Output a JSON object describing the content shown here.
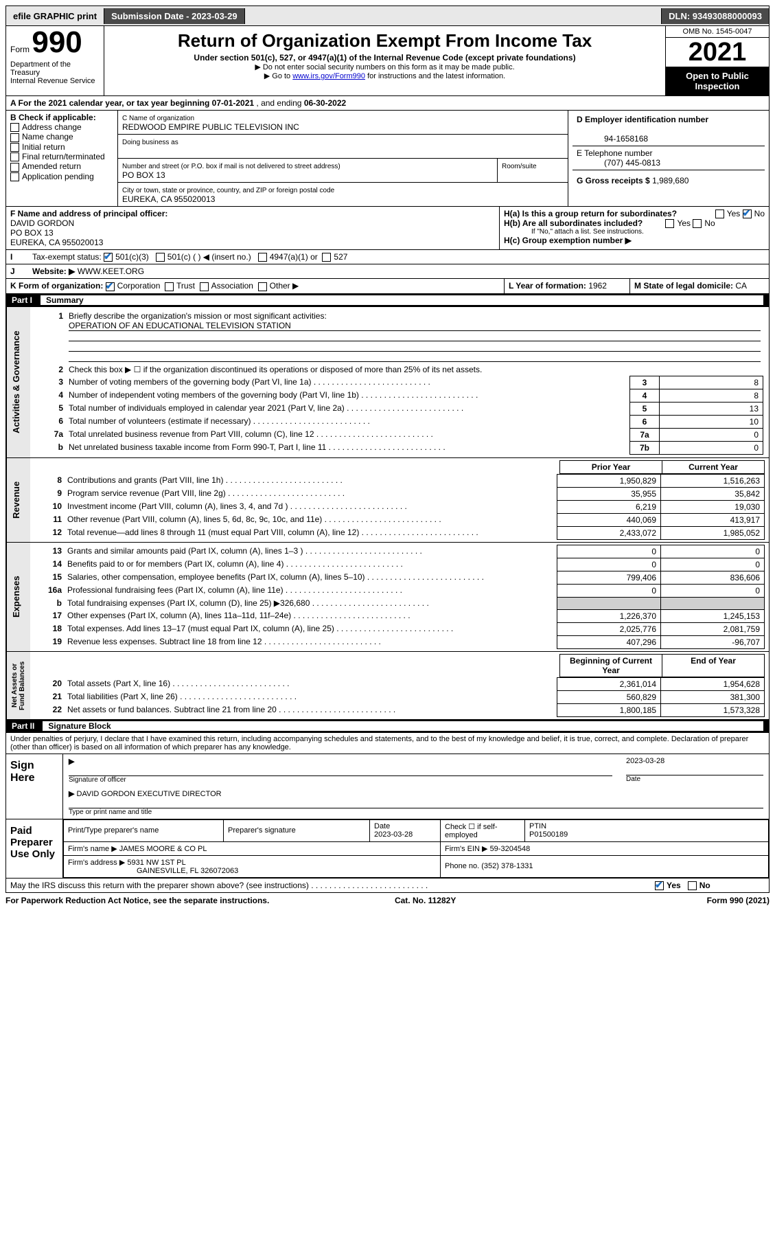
{
  "topbar": {
    "efile": "efile GRAPHIC print",
    "submission": "Submission Date - 2023-03-29",
    "dln": "DLN: 93493088000093"
  },
  "header": {
    "form_word": "Form",
    "form_num": "990",
    "title": "Return of Organization Exempt From Income Tax",
    "subtitle": "Under section 501(c), 527, or 4947(a)(1) of the Internal Revenue Code (except private foundations)",
    "note1": "▶ Do not enter social security numbers on this form as it may be made public.",
    "note2_pre": "▶ Go to ",
    "note2_link": "www.irs.gov/Form990",
    "note2_post": " for instructions and the latest information.",
    "dept": "Department of the Treasury\nInternal Revenue Service",
    "omb": "OMB No. 1545-0047",
    "year": "2021",
    "open": "Open to Public Inspection"
  },
  "period": {
    "label": "A For the 2021 calendar year, or tax year beginning ",
    "begin": "07-01-2021",
    "mid": " , and ending ",
    "end": "06-30-2022"
  },
  "boxB": {
    "label": "B Check if applicable:",
    "items": [
      "Address change",
      "Name change",
      "Initial return",
      "Final return/terminated",
      "Amended return",
      "Application pending"
    ]
  },
  "boxC": {
    "name_label": "C Name of organization",
    "name": "REDWOOD EMPIRE PUBLIC TELEVISION INC",
    "dba_label": "Doing business as",
    "addr_label": "Number and street (or P.O. box if mail is not delivered to street address)",
    "room_label": "Room/suite",
    "addr": "PO BOX 13",
    "city_label": "City or town, state or province, country, and ZIP or foreign postal code",
    "city": "EUREKA, CA  955020013"
  },
  "boxD": {
    "label": "D Employer identification number",
    "val": "94-1658168"
  },
  "boxE": {
    "label": "E Telephone number",
    "val": "(707) 445-0813"
  },
  "boxG": {
    "label": "G Gross receipts $",
    "val": "1,989,680"
  },
  "boxF": {
    "label": "F Name and address of principal officer:",
    "name": "DAVID GORDON",
    "addr": "PO BOX 13",
    "city": "EUREKA, CA  955020013"
  },
  "boxH": {
    "a_label": "H(a)  Is this a group return for subordinates?",
    "a_yes": "Yes",
    "a_no": "No",
    "b_label": "H(b)  Are all subordinates included?",
    "b_note": "If \"No,\" attach a list. See instructions.",
    "c_label": "H(c)  Group exemption number ▶"
  },
  "boxI": {
    "label": "Tax-exempt status:",
    "opts": [
      "501(c)(3)",
      "501(c) (  ) ◀ (insert no.)",
      "4947(a)(1) or",
      "527"
    ]
  },
  "boxJ": {
    "label": "Website: ▶",
    "val": "WWW.KEET.ORG"
  },
  "boxK": {
    "label": "K Form of organization:",
    "opts": [
      "Corporation",
      "Trust",
      "Association",
      "Other ▶"
    ]
  },
  "boxL": {
    "label": "L Year of formation:",
    "val": "1962"
  },
  "boxM": {
    "label": "M State of legal domicile:",
    "val": "CA"
  },
  "part1": {
    "num": "Part I",
    "title": "Summary"
  },
  "summary": {
    "l1_label": "Briefly describe the organization's mission or most significant activities:",
    "l1_val": "OPERATION OF AN EDUCATIONAL TELEVISION STATION",
    "l2": "Check this box ▶ ☐  if the organization discontinued its operations or disposed of more than 25% of its net assets.",
    "rows_single": [
      {
        "n": "3",
        "t": "Number of voting members of the governing body (Part VI, line 1a)",
        "b": "3",
        "v": "8"
      },
      {
        "n": "4",
        "t": "Number of independent voting members of the governing body (Part VI, line 1b)",
        "b": "4",
        "v": "8"
      },
      {
        "n": "5",
        "t": "Total number of individuals employed in calendar year 2021 (Part V, line 2a)",
        "b": "5",
        "v": "13"
      },
      {
        "n": "6",
        "t": "Total number of volunteers (estimate if necessary)",
        "b": "6",
        "v": "10"
      },
      {
        "n": "7a",
        "t": "Total unrelated business revenue from Part VIII, column (C), line 12",
        "b": "7a",
        "v": "0"
      },
      {
        "n": "b",
        "t": "Net unrelated business taxable income from Form 990-T, Part I, line 11",
        "b": "7b",
        "v": "0"
      }
    ],
    "col_heads": {
      "prior": "Prior Year",
      "current": "Current Year"
    },
    "rev_rows": [
      {
        "n": "8",
        "t": "Contributions and grants (Part VIII, line 1h)",
        "p": "1,950,829",
        "c": "1,516,263"
      },
      {
        "n": "9",
        "t": "Program service revenue (Part VIII, line 2g)",
        "p": "35,955",
        "c": "35,842"
      },
      {
        "n": "10",
        "t": "Investment income (Part VIII, column (A), lines 3, 4, and 7d )",
        "p": "6,219",
        "c": "19,030"
      },
      {
        "n": "11",
        "t": "Other revenue (Part VIII, column (A), lines 5, 6d, 8c, 9c, 10c, and 11e)",
        "p": "440,069",
        "c": "413,917"
      },
      {
        "n": "12",
        "t": "Total revenue—add lines 8 through 11 (must equal Part VIII, column (A), line 12)",
        "p": "2,433,072",
        "c": "1,985,052"
      }
    ],
    "exp_rows": [
      {
        "n": "13",
        "t": "Grants and similar amounts paid (Part IX, column (A), lines 1–3 )",
        "p": "0",
        "c": "0"
      },
      {
        "n": "14",
        "t": "Benefits paid to or for members (Part IX, column (A), line 4)",
        "p": "0",
        "c": "0"
      },
      {
        "n": "15",
        "t": "Salaries, other compensation, employee benefits (Part IX, column (A), lines 5–10)",
        "p": "799,406",
        "c": "836,606"
      },
      {
        "n": "16a",
        "t": "Professional fundraising fees (Part IX, column (A), line 11e)",
        "p": "0",
        "c": "0"
      },
      {
        "n": "b",
        "t": "Total fundraising expenses (Part IX, column (D), line 25) ▶326,680",
        "p": "",
        "c": "",
        "shade": true
      },
      {
        "n": "17",
        "t": "Other expenses (Part IX, column (A), lines 11a–11d, 11f–24e)",
        "p": "1,226,370",
        "c": "1,245,153"
      },
      {
        "n": "18",
        "t": "Total expenses. Add lines 13–17 (must equal Part IX, column (A), line 25)",
        "p": "2,025,776",
        "c": "2,081,759"
      },
      {
        "n": "19",
        "t": "Revenue less expenses. Subtract line 18 from line 12",
        "p": "407,296",
        "c": "-96,707"
      }
    ],
    "na_heads": {
      "prior": "Beginning of Current Year",
      "current": "End of Year"
    },
    "na_rows": [
      {
        "n": "20",
        "t": "Total assets (Part X, line 16)",
        "p": "2,361,014",
        "c": "1,954,628"
      },
      {
        "n": "21",
        "t": "Total liabilities (Part X, line 26)",
        "p": "560,829",
        "c": "381,300"
      },
      {
        "n": "22",
        "t": "Net assets or fund balances. Subtract line 21 from line 20",
        "p": "1,800,185",
        "c": "1,573,328"
      }
    ]
  },
  "vtabs": {
    "ag": "Activities & Governance",
    "rev": "Revenue",
    "exp": "Expenses",
    "na": "Net Assets or\nFund Balances"
  },
  "part2": {
    "num": "Part II",
    "title": "Signature Block"
  },
  "sig": {
    "decl": "Under penalties of perjury, I declare that I have examined this return, including accompanying schedules and statements, and to the best of my knowledge and belief, it is true, correct, and complete. Declaration of preparer (other than officer) is based on all information of which preparer has any knowledge.",
    "sign_here": "Sign Here",
    "sig_officer": "Signature of officer",
    "date": "2023-03-28",
    "date_label": "Date",
    "name": "DAVID GORDON  EXECUTIVE DIRECTOR",
    "name_label": "Type or print name and title",
    "paid": "Paid Preparer Use Only",
    "p_name_h": "Print/Type preparer's name",
    "p_sig_h": "Preparer's signature",
    "p_date_h": "Date",
    "p_date": "2023-03-28",
    "p_check": "Check ☐ if self-employed",
    "ptin_h": "PTIN",
    "ptin": "P01500189",
    "firm_name_l": "Firm's name    ▶",
    "firm_name": "JAMES MOORE & CO PL",
    "firm_ein_l": "Firm's EIN ▶",
    "firm_ein": "59-3204548",
    "firm_addr_l": "Firm's address ▶",
    "firm_addr": "5931 NW 1ST PL",
    "firm_city": "GAINESVILLE, FL  326072063",
    "phone_l": "Phone no.",
    "phone": "(352) 378-1331",
    "discuss": "May the IRS discuss this return with the preparer shown above? (see instructions)",
    "yes": "Yes",
    "no": "No"
  },
  "footer": {
    "left": "For Paperwork Reduction Act Notice, see the separate instructions.",
    "mid": "Cat. No. 11282Y",
    "right": "Form 990 (2021)"
  }
}
